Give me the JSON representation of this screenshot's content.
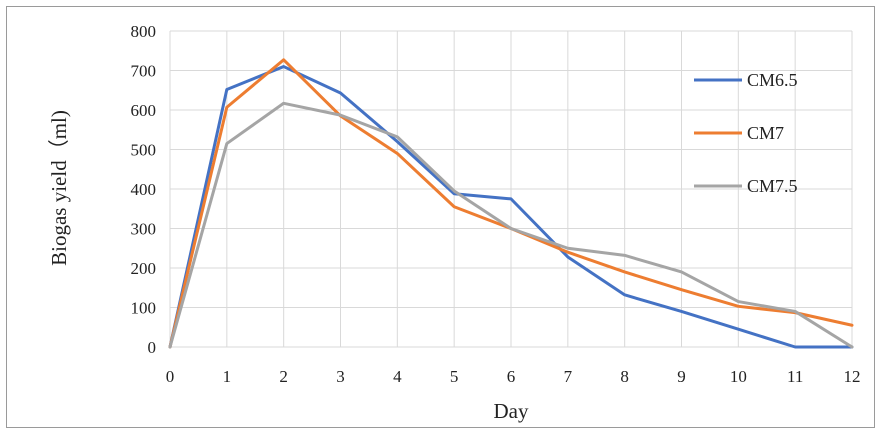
{
  "chart_data": {
    "type": "line",
    "title": "",
    "xlabel": "Day",
    "ylabel": "Biogas yield（ml)",
    "x": [
      0,
      1,
      2,
      3,
      4,
      5,
      6,
      7,
      8,
      9,
      10,
      11,
      12
    ],
    "xlim": [
      0,
      12
    ],
    "ylim": [
      0,
      800
    ],
    "yticks": [
      0,
      100,
      200,
      300,
      400,
      500,
      600,
      700,
      800
    ],
    "grid": true,
    "legend_position": "right",
    "series": [
      {
        "name": "CM6.5",
        "color": "#4472C4",
        "values": [
          0,
          652,
          710,
          643,
          520,
          388,
          375,
          228,
          132,
          90,
          45,
          0,
          0
        ]
      },
      {
        "name": "CM7",
        "color": "#ED7D31",
        "values": [
          0,
          607,
          727,
          585,
          490,
          355,
          300,
          240,
          190,
          145,
          103,
          87,
          55
        ]
      },
      {
        "name": "CM7.5",
        "color": "#A5A5A5",
        "values": [
          0,
          515,
          617,
          587,
          532,
          395,
          300,
          250,
          232,
          190,
          115,
          90,
          0
        ]
      }
    ]
  }
}
